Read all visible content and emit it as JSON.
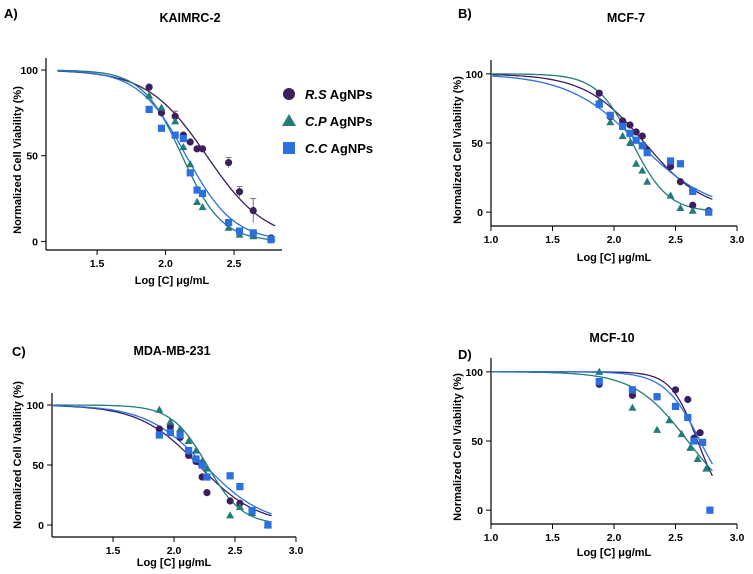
{
  "figure": {
    "legend": {
      "entries": [
        {
          "abbr": "R.S",
          "suffix": " AgNPs",
          "color": "#3b1f5e",
          "marker": "circle"
        },
        {
          "abbr": "C.P",
          "suffix": " AgNPs",
          "color": "#237b7a",
          "marker": "triangle"
        },
        {
          "abbr": "C.C",
          "suffix": " AgNPs",
          "color": "#2c6fe0",
          "marker": "square"
        }
      ]
    }
  },
  "chart_data": [
    {
      "type": "scatter",
      "panel": "A)",
      "title": "KAIMRC-2",
      "xlabel": "Log [C] μg/mL",
      "ylabel": "Normalized Cell Viability (%)",
      "xlim": [
        1.2,
        2.85
      ],
      "ylim": [
        -5,
        107
      ],
      "xticks": [
        "1.5",
        "2.0",
        "2.5"
      ],
      "xtick_values": [
        1.5,
        2.0,
        2.5
      ],
      "yticks": [
        "0",
        "50",
        "100"
      ],
      "ytick_values": [
        0,
        50,
        100
      ],
      "series": [
        {
          "name": "R.S AgNPs",
          "color": "#3b1f5e",
          "marker": "circle",
          "ic50": 2.3,
          "hill": 2.0,
          "x": [
            1.88,
            1.97,
            2.07,
            2.13,
            2.18,
            2.23,
            2.27,
            2.46,
            2.54,
            2.64,
            2.77
          ],
          "y": [
            90,
            75,
            73,
            62,
            58,
            54,
            54,
            46,
            29,
            18,
            2
          ],
          "err": [
            0,
            0,
            3,
            0,
            0,
            0,
            0,
            3,
            3,
            7,
            0
          ]
        },
        {
          "name": "C.P AgNPs",
          "color": "#237b7a",
          "marker": "triangle",
          "ic50": 2.12,
          "hill": 3.0,
          "x": [
            1.88,
            1.97,
            2.07,
            2.13,
            2.18,
            2.23,
            2.27,
            2.46,
            2.54,
            2.64,
            2.77
          ],
          "y": [
            85,
            78,
            70,
            55,
            45,
            23,
            20,
            8,
            4,
            3,
            2
          ]
        },
        {
          "name": "C.C AgNPs",
          "color": "#2c6fe0",
          "marker": "square",
          "ic50": 2.15,
          "hill": 2.5,
          "x": [
            1.88,
            1.97,
            2.07,
            2.13,
            2.18,
            2.23,
            2.27,
            2.46,
            2.54,
            2.64,
            2.77
          ],
          "y": [
            77,
            66,
            62,
            60,
            40,
            30,
            28,
            11,
            6,
            5,
            1
          ]
        }
      ]
    },
    {
      "type": "scatter",
      "panel": "B)",
      "title": "MCF-7",
      "xlabel": "Log [C] μg/mL",
      "ylabel": "Normalized Cell Viability (%)",
      "xlim": [
        1.0,
        3.0
      ],
      "ylim": [
        -10,
        110
      ],
      "xticks": [
        "1.0",
        "1.5",
        "2.0",
        "2.5",
        "3.0"
      ],
      "xtick_values": [
        1.0,
        1.5,
        2.0,
        2.5,
        3.0
      ],
      "yticks": [
        "0",
        "50",
        "100"
      ],
      "ytick_values": [
        0,
        50,
        100
      ],
      "series": [
        {
          "name": "R.S AgNPs",
          "color": "#3b1f5e",
          "marker": "circle",
          "ic50": 2.25,
          "hill": 1.8,
          "x": [
            1.88,
            1.97,
            2.07,
            2.13,
            2.18,
            2.23,
            2.27,
            2.46,
            2.54,
            2.64,
            2.77
          ],
          "y": [
            86,
            69,
            66,
            63,
            58,
            55,
            45,
            33,
            22,
            5,
            1
          ]
        },
        {
          "name": "C.P AgNPs",
          "color": "#237b7a",
          "marker": "triangle",
          "ic50": 2.15,
          "hill": 3.0,
          "x": [
            1.88,
            1.97,
            2.07,
            2.13,
            2.18,
            2.23,
            2.27,
            2.46,
            2.54,
            2.64,
            2.77
          ],
          "y": [
            80,
            65,
            55,
            50,
            35,
            30,
            22,
            12,
            3,
            1,
            0
          ]
        },
        {
          "name": "C.C AgNPs",
          "color": "#2c6fe0",
          "marker": "square",
          "ic50": 2.2,
          "hill": 1.5,
          "x": [
            1.88,
            1.97,
            2.07,
            2.13,
            2.18,
            2.23,
            2.27,
            2.46,
            2.54,
            2.64,
            2.77
          ],
          "y": [
            78,
            70,
            62,
            57,
            52,
            48,
            43,
            37,
            35,
            15,
            0
          ]
        }
      ]
    },
    {
      "type": "scatter",
      "panel": "C)",
      "title": "MDA-MB-231",
      "xlabel": "Log [C] μg/mL",
      "ylabel": "Normalized Cell Viability (%)",
      "xlim": [
        1.0,
        3.0
      ],
      "ylim": [
        -10,
        110
      ],
      "xticks": [
        "1.5",
        "2.0",
        "2.5",
        "3.0"
      ],
      "xtick_values": [
        1.5,
        2.0,
        2.5,
        3.0
      ],
      "yticks": [
        "0",
        "50",
        "100"
      ],
      "ytick_values": [
        0,
        50,
        100
      ],
      "series": [
        {
          "name": "R.S AgNPs",
          "color": "#3b1f5e",
          "marker": "circle",
          "ic50": 2.2,
          "hill": 1.8,
          "x": [
            1.88,
            1.97,
            2.05,
            2.12,
            2.18,
            2.23,
            2.27,
            2.46,
            2.54,
            2.64,
            2.77
          ],
          "y": [
            80,
            82,
            73,
            58,
            53,
            40,
            27,
            20,
            18,
            12,
            0
          ]
        },
        {
          "name": "C.P AgNPs",
          "color": "#237b7a",
          "marker": "triangle",
          "ic50": 2.27,
          "hill": 3.0,
          "x": [
            1.88,
            1.97,
            2.05,
            2.12,
            2.18,
            2.23,
            2.27,
            2.46,
            2.54,
            2.64,
            2.77
          ],
          "y": [
            96,
            86,
            80,
            70,
            62,
            53,
            47,
            8,
            15,
            10,
            0
          ]
        },
        {
          "name": "C.C AgNPs",
          "color": "#2c6fe0",
          "marker": "square",
          "ic50": 2.25,
          "hill": 1.8,
          "x": [
            1.88,
            1.97,
            2.05,
            2.12,
            2.18,
            2.23,
            2.27,
            2.46,
            2.54,
            2.64,
            2.77
          ],
          "y": [
            75,
            77,
            75,
            62,
            55,
            50,
            40,
            41,
            32,
            12,
            0
          ]
        }
      ]
    },
    {
      "type": "scatter",
      "panel": "D)",
      "title": "MCF-10",
      "xlabel": "Log [C] μg/mL",
      "ylabel": "Normalized Cell Viability (%)",
      "xlim": [
        1.0,
        3.0
      ],
      "ylim": [
        -10,
        110
      ],
      "xticks": [
        "1.0",
        "1.5",
        "2.0",
        "2.5",
        "3.0"
      ],
      "xtick_values": [
        1.0,
        1.5,
        2.0,
        2.5,
        3.0
      ],
      "yticks": [
        "0",
        "50",
        "100"
      ],
      "ytick_values": [
        0,
        50,
        100
      ],
      "series": [
        {
          "name": "R.S AgNPs",
          "color": "#3b1f5e",
          "marker": "circle",
          "ic50": 2.68,
          "hill": 4.0,
          "x": [
            1.88,
            2.15,
            2.35,
            2.5,
            2.6,
            2.65,
            2.7,
            2.78
          ],
          "y": [
            91,
            83,
            82,
            87,
            80,
            52,
            56,
            0
          ]
        },
        {
          "name": "C.P AgNPs",
          "color": "#237b7a",
          "marker": "triangle",
          "ic50": 2.6,
          "hill": 2.0,
          "x": [
            1.88,
            2.15,
            2.35,
            2.45,
            2.55,
            2.62,
            2.68,
            2.75
          ],
          "y": [
            100,
            74,
            58,
            65,
            55,
            45,
            37,
            30
          ]
        },
        {
          "name": "C.C AgNPs",
          "color": "#2c6fe0",
          "marker": "square",
          "ic50": 2.7,
          "hill": 3.0,
          "x": [
            1.88,
            2.15,
            2.35,
            2.5,
            2.6,
            2.65,
            2.72,
            2.78
          ],
          "y": [
            93,
            87,
            82,
            75,
            67,
            50,
            49,
            0
          ]
        }
      ]
    }
  ]
}
